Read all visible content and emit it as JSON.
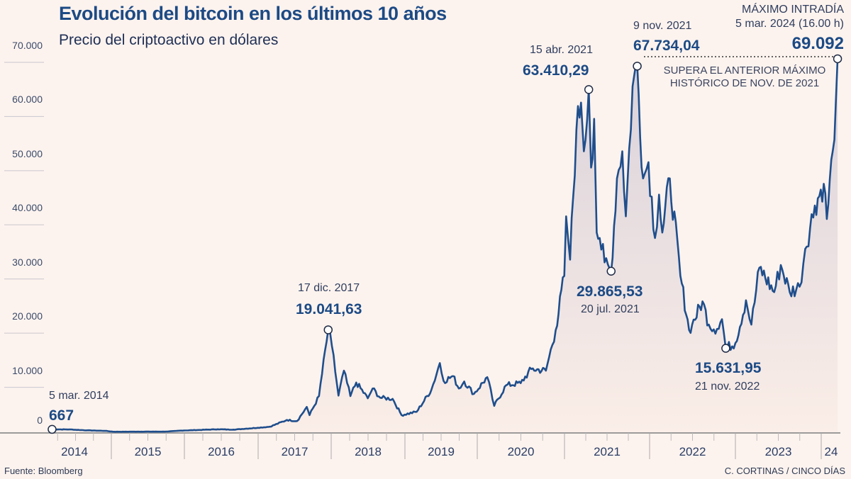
{
  "title": "Evolución del bitcoin en los últimos 10 años",
  "subtitle": "Precio del criptoactivo en dólares",
  "source": "Fuente: Bloomberg",
  "credit": "C. CORTINAS / CINCO DÍAS",
  "colors": {
    "background": "#fdf3ee",
    "line": "#1f4e8c",
    "title": "#1c4a85"
  },
  "annotations": {
    "start": {
      "date": "5 mar. 2014",
      "value": "667"
    },
    "peak2017": {
      "date": "17 dic. 2017",
      "value": "19.041,63"
    },
    "apr2021": {
      "date": "15 abr. 2021",
      "value": "63.410,29"
    },
    "jul2021": {
      "date": "20 jul. 2021",
      "value": "29.865,53"
    },
    "nov2021": {
      "date": "9 nov. 2021",
      "value": "67.734,04"
    },
    "nov2022": {
      "date": "21 nov. 2022",
      "value": "15.631,95"
    },
    "max2024": {
      "label": "MÁXIMO INTRADÍA",
      "date": "5 mar. 2024 (16.00 h)",
      "value": "69.092"
    },
    "note": [
      "SUPERA EL ANTERIOR MÁXIMO",
      "HISTÓRICO DE NOV. DE 2021"
    ]
  },
  "chart_data": {
    "type": "area",
    "title": "Evolución del bitcoin en los últimos 10 años",
    "subtitle": "Precio del criptoactivo en dólares",
    "xlabel": "",
    "ylabel": "",
    "ylim": [
      0,
      70000
    ],
    "yticks": [
      "0",
      "10.000",
      "20.000",
      "30.000",
      "40.000",
      "50.000",
      "60.000",
      "70.000"
    ],
    "ytick_values": [
      0,
      10000,
      20000,
      30000,
      40000,
      50000,
      60000,
      70000
    ],
    "xticks": [
      "2014",
      "2015",
      "2016",
      "2017",
      "2018",
      "2019",
      "2020",
      "2021",
      "2022",
      "2023",
      "24"
    ],
    "grid": true,
    "legend": "none",
    "series": [
      {
        "x": [
          "2014-03-05",
          "2014-06-01",
          "2014-09-01",
          "2014-12-01",
          "2015-01-15",
          "2015-06-01",
          "2015-10-01",
          "2015-12-15",
          "2016-06-15",
          "2016-09-01",
          "2016-12-31",
          "2017-03-01",
          "2017-05-25",
          "2017-07-15",
          "2017-09-01",
          "2017-09-15",
          "2017-11-01",
          "2017-12-17",
          "2018-01-05",
          "2018-02-06",
          "2018-03-05",
          "2018-04-06",
          "2018-05-05",
          "2018-07-01",
          "2018-07-25",
          "2018-09-01",
          "2018-11-01",
          "2018-12-15",
          "2019-03-01",
          "2019-05-15",
          "2019-06-26",
          "2019-07-15",
          "2019-09-01",
          "2019-09-30",
          "2019-10-27",
          "2019-12-15",
          "2020-02-12",
          "2020-03-12",
          "2020-05-01",
          "2020-07-01",
          "2020-08-15",
          "2020-10-15",
          "2020-11-25",
          "2020-12-31",
          "2021-01-08",
          "2021-01-25",
          "2021-02-21",
          "2021-03-13",
          "2021-03-25",
          "2021-04-15",
          "2021-04-25",
          "2021-05-08",
          "2021-05-19",
          "2021-06-01",
          "2021-06-22",
          "2021-07-20",
          "2021-08-14",
          "2021-09-06",
          "2021-09-21",
          "2021-10-20",
          "2021-11-09",
          "2021-12-04",
          "2021-12-27",
          "2022-01-24",
          "2022-02-10",
          "2022-02-24",
          "2022-03-28",
          "2022-05-12",
          "2022-06-18",
          "2022-07-01",
          "2022-08-14",
          "2022-09-10",
          "2022-10-15",
          "2022-11-05",
          "2022-11-21",
          "2023-01-01",
          "2023-02-15",
          "2023-03-10",
          "2023-04-13",
          "2023-06-15",
          "2023-07-13",
          "2023-08-20",
          "2023-10-01",
          "2023-10-25",
          "2023-12-05",
          "2024-01-11",
          "2024-01-23",
          "2024-02-15",
          "2024-02-28",
          "2024-03-05"
        ],
        "y": [
          667,
          640,
          480,
          380,
          220,
          240,
          245,
          430,
          680,
          610,
          960,
          1150,
          2400,
          2200,
          4800,
          3300,
          6800,
          19041.63,
          16000,
          6900,
          11500,
          6800,
          9300,
          6400,
          8200,
          6500,
          6300,
          3300,
          3900,
          8000,
          12900,
          9600,
          10500,
          8200,
          9500,
          7200,
          10300,
          5000,
          8800,
          9200,
          11800,
          11500,
          19000,
          29000,
          40000,
          32000,
          56000,
          61000,
          52000,
          63410.29,
          49000,
          58000,
          37000,
          36000,
          31500,
          29865.53,
          47000,
          52000,
          40000,
          64000,
          67734.04,
          47000,
          50000,
          36000,
          44000,
          37000,
          47000,
          29000,
          19000,
          20000,
          24300,
          20000,
          19200,
          21000,
          15631.95,
          16600,
          24500,
          20000,
          30500,
          26000,
          31000,
          26000,
          27000,
          34000,
          42000,
          46000,
          39500,
          52000,
          62000,
          69092
        ]
      }
    ]
  }
}
